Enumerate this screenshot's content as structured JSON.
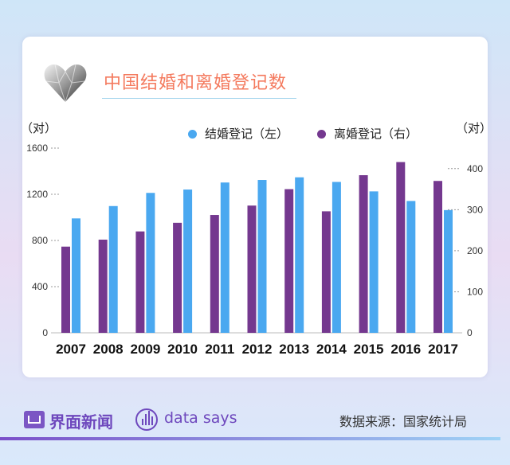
{
  "header": {
    "title": "中国结婚和离婚登记数"
  },
  "units": {
    "left": "（对）",
    "right": "（对）"
  },
  "legend": [
    {
      "label": "结婚登记（左）",
      "color": "#4aa8f0"
    },
    {
      "label": "离婚登记（右）",
      "color": "#74388f"
    }
  ],
  "footer": {
    "brand": "界面新闻",
    "datasays": "data says",
    "source": "数据来源：国家统计局"
  },
  "chart_data": {
    "type": "bar",
    "categories": [
      "2007",
      "2008",
      "2009",
      "2010",
      "2011",
      "2012",
      "2013",
      "2014",
      "2015",
      "2016",
      "2017"
    ],
    "series": [
      {
        "name": "结婚登记（左）",
        "axis": "left",
        "color": "#4aa8f0",
        "values": [
          991,
          1098,
          1212,
          1241,
          1302,
          1324,
          1347,
          1307,
          1225,
          1142,
          1063
        ]
      },
      {
        "name": "离婚登记（右）",
        "axis": "right",
        "color": "#74388f",
        "values": [
          210,
          227,
          247,
          268,
          287,
          310,
          350,
          296,
          384,
          416,
          370
        ]
      }
    ],
    "y_left": {
      "range": [
        0,
        1600
      ],
      "ticks": [
        0,
        400,
        800,
        1200,
        1600
      ]
    },
    "y_right": {
      "range": [
        0,
        450
      ],
      "ticks": [
        0,
        100,
        200,
        300,
        400
      ]
    },
    "grid": true,
    "legend_position": "top"
  }
}
